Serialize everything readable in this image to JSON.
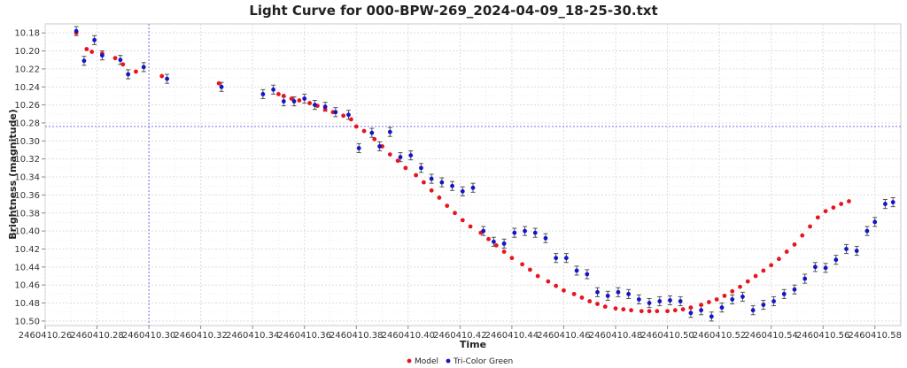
{
  "chart_data": {
    "type": "scatter",
    "title": "Light Curve for 000-BPW-269_2024-04-09_18-25-30.txt",
    "xlabel": "Time",
    "ylabel": "Brightness (magnitude)",
    "xlim": [
      2460410.26,
      2460410.59
    ],
    "ylim": [
      10.17,
      10.505
    ],
    "y_inverted": true,
    "grid": true,
    "legend_position": "bottom-center",
    "x_ticks": [
      "2460410.26",
      "2460410.28",
      "2460410.30",
      "2460410.32",
      "2460410.34",
      "2460410.36",
      "2460410.38",
      "2460410.40",
      "2460410.42",
      "2460410.44",
      "2460410.46",
      "2460410.48",
      "2460410.50",
      "2460410.52",
      "2460410.54",
      "2460410.56",
      "2460410.58"
    ],
    "y_ticks": [
      "10.18",
      "10.20",
      "10.22",
      "10.24",
      "10.26",
      "10.28",
      "10.30",
      "10.32",
      "10.34",
      "10.36",
      "10.38",
      "10.40",
      "10.42",
      "10.44",
      "10.46",
      "10.48",
      "10.50"
    ],
    "crosshair": {
      "x": 2460410.3,
      "y": 10.284
    },
    "series": [
      {
        "name": "Model",
        "color": "#e8141e",
        "points": [
          [
            2460410.272,
            10.18
          ],
          [
            2460410.276,
            10.198
          ],
          [
            2460410.278,
            10.201
          ],
          [
            2460410.282,
            10.203
          ],
          [
            2460410.287,
            10.208
          ],
          [
            2460410.29,
            10.215
          ],
          [
            2460410.295,
            10.223
          ],
          [
            2460410.305,
            10.228
          ],
          [
            2460410.327,
            10.236
          ],
          [
            2460410.35,
            10.248
          ],
          [
            2460410.352,
            10.25
          ],
          [
            2460410.355,
            10.253
          ],
          [
            2460410.358,
            10.255
          ],
          [
            2460410.362,
            10.258
          ],
          [
            2460410.365,
            10.261
          ],
          [
            2460410.368,
            10.265
          ],
          [
            2460410.371,
            10.268
          ],
          [
            2460410.375,
            10.272
          ],
          [
            2460410.378,
            10.276
          ],
          [
            2460410.38,
            10.284
          ],
          [
            2460410.383,
            10.289
          ],
          [
            2460410.387,
            10.298
          ],
          [
            2460410.39,
            10.306
          ],
          [
            2460410.393,
            10.315
          ],
          [
            2460410.396,
            10.322
          ],
          [
            2460410.399,
            10.33
          ],
          [
            2460410.403,
            10.338
          ],
          [
            2460410.406,
            10.346
          ],
          [
            2460410.409,
            10.355
          ],
          [
            2460410.412,
            10.363
          ],
          [
            2460410.415,
            10.372
          ],
          [
            2460410.418,
            10.38
          ],
          [
            2460410.421,
            10.388
          ],
          [
            2460410.424,
            10.395
          ],
          [
            2460410.428,
            10.402
          ],
          [
            2460410.431,
            10.409
          ],
          [
            2460410.434,
            10.416
          ],
          [
            2460410.437,
            10.423
          ],
          [
            2460410.44,
            10.43
          ],
          [
            2460410.444,
            10.437
          ],
          [
            2460410.447,
            10.443
          ],
          [
            2460410.45,
            10.45
          ],
          [
            2460410.454,
            10.456
          ],
          [
            2460410.457,
            10.461
          ],
          [
            2460410.46,
            10.466
          ],
          [
            2460410.464,
            10.47
          ],
          [
            2460410.467,
            10.474
          ],
          [
            2460410.47,
            10.478
          ],
          [
            2460410.473,
            10.481
          ],
          [
            2460410.476,
            10.484
          ],
          [
            2460410.48,
            10.486
          ],
          [
            2460410.483,
            10.487
          ],
          [
            2460410.486,
            10.488
          ],
          [
            2460410.49,
            10.489
          ],
          [
            2460410.493,
            10.489
          ],
          [
            2460410.496,
            10.489
          ],
          [
            2460410.5,
            10.489
          ],
          [
            2460410.503,
            10.488
          ],
          [
            2460410.506,
            10.487
          ],
          [
            2460410.509,
            10.485
          ],
          [
            2460410.513,
            10.482
          ],
          [
            2460410.516,
            10.479
          ],
          [
            2460410.519,
            10.476
          ],
          [
            2460410.522,
            10.472
          ],
          [
            2460410.525,
            10.467
          ],
          [
            2460410.528,
            10.462
          ],
          [
            2460410.531,
            10.456
          ],
          [
            2460410.534,
            10.45
          ],
          [
            2460410.537,
            10.444
          ],
          [
            2460410.54,
            10.438
          ],
          [
            2460410.543,
            10.431
          ],
          [
            2460410.546,
            10.423
          ],
          [
            2460410.549,
            10.415
          ],
          [
            2460410.552,
            10.405
          ],
          [
            2460410.555,
            10.395
          ],
          [
            2460410.558,
            10.385
          ],
          [
            2460410.561,
            10.378
          ],
          [
            2460410.564,
            10.374
          ],
          [
            2460410.567,
            10.37
          ],
          [
            2460410.57,
            10.367
          ]
        ]
      },
      {
        "name": "Tri-Color Green",
        "color": "#1414c8",
        "points": [
          [
            2460410.272,
            10.178,
            0.005
          ],
          [
            2460410.275,
            10.211,
            0.005
          ],
          [
            2460410.279,
            10.188,
            0.005
          ],
          [
            2460410.282,
            10.205,
            0.005
          ],
          [
            2460410.289,
            10.21,
            0.005
          ],
          [
            2460410.292,
            10.226,
            0.005
          ],
          [
            2460410.298,
            10.218,
            0.005
          ],
          [
            2460410.307,
            10.231,
            0.005
          ],
          [
            2460410.328,
            10.24,
            0.005
          ],
          [
            2460410.344,
            10.248,
            0.005
          ],
          [
            2460410.348,
            10.243,
            0.005
          ],
          [
            2460410.352,
            10.256,
            0.005
          ],
          [
            2460410.356,
            10.256,
            0.005
          ],
          [
            2460410.36,
            10.253,
            0.005
          ],
          [
            2460410.364,
            10.26,
            0.005
          ],
          [
            2460410.368,
            10.262,
            0.005
          ],
          [
            2460410.372,
            10.268,
            0.005
          ],
          [
            2460410.377,
            10.271,
            0.005
          ],
          [
            2460410.381,
            10.308,
            0.005
          ],
          [
            2460410.386,
            10.291,
            0.005
          ],
          [
            2460410.389,
            10.306,
            0.005
          ],
          [
            2460410.393,
            10.29,
            0.005
          ],
          [
            2460410.397,
            10.318,
            0.005
          ],
          [
            2460410.401,
            10.316,
            0.005
          ],
          [
            2460410.405,
            10.33,
            0.005
          ],
          [
            2460410.409,
            10.342,
            0.005
          ],
          [
            2460410.413,
            10.346,
            0.005
          ],
          [
            2460410.417,
            10.35,
            0.005
          ],
          [
            2460410.421,
            10.356,
            0.005
          ],
          [
            2460410.425,
            10.352,
            0.005
          ],
          [
            2460410.429,
            10.4,
            0.005
          ],
          [
            2460410.433,
            10.412,
            0.005
          ],
          [
            2460410.437,
            10.414,
            0.005
          ],
          [
            2460410.441,
            10.402,
            0.005
          ],
          [
            2460410.445,
            10.4,
            0.005
          ],
          [
            2460410.449,
            10.402,
            0.005
          ],
          [
            2460410.453,
            10.408,
            0.005
          ],
          [
            2460410.457,
            10.43,
            0.005
          ],
          [
            2460410.461,
            10.43,
            0.005
          ],
          [
            2460410.465,
            10.444,
            0.005
          ],
          [
            2460410.469,
            10.448,
            0.005
          ],
          [
            2460410.473,
            10.468,
            0.005
          ],
          [
            2460410.477,
            10.472,
            0.005
          ],
          [
            2460410.481,
            10.468,
            0.005
          ],
          [
            2460410.485,
            10.47,
            0.005
          ],
          [
            2460410.489,
            10.476,
            0.005
          ],
          [
            2460410.493,
            10.48,
            0.005
          ],
          [
            2460410.497,
            10.478,
            0.005
          ],
          [
            2460410.501,
            10.477,
            0.005
          ],
          [
            2460410.505,
            10.478,
            0.005
          ],
          [
            2460410.509,
            10.491,
            0.005
          ],
          [
            2460410.513,
            10.488,
            0.005
          ],
          [
            2460410.517,
            10.495,
            0.005
          ],
          [
            2460410.521,
            10.485,
            0.005
          ],
          [
            2460410.525,
            10.476,
            0.005
          ],
          [
            2460410.529,
            10.473,
            0.005
          ],
          [
            2460410.533,
            10.488,
            0.005
          ],
          [
            2460410.537,
            10.482,
            0.005
          ],
          [
            2460410.541,
            10.478,
            0.005
          ],
          [
            2460410.545,
            10.47,
            0.005
          ],
          [
            2460410.549,
            10.465,
            0.005
          ],
          [
            2460410.553,
            10.453,
            0.005
          ],
          [
            2460410.557,
            10.44,
            0.005
          ],
          [
            2460410.561,
            10.441,
            0.005
          ],
          [
            2460410.565,
            10.432,
            0.005
          ],
          [
            2460410.569,
            10.42,
            0.005
          ],
          [
            2460410.573,
            10.422,
            0.005
          ],
          [
            2460410.577,
            10.4,
            0.005
          ],
          [
            2460410.58,
            10.39,
            0.005
          ],
          [
            2460410.584,
            10.37,
            0.005
          ],
          [
            2460410.587,
            10.368,
            0.005
          ]
        ]
      }
    ]
  }
}
